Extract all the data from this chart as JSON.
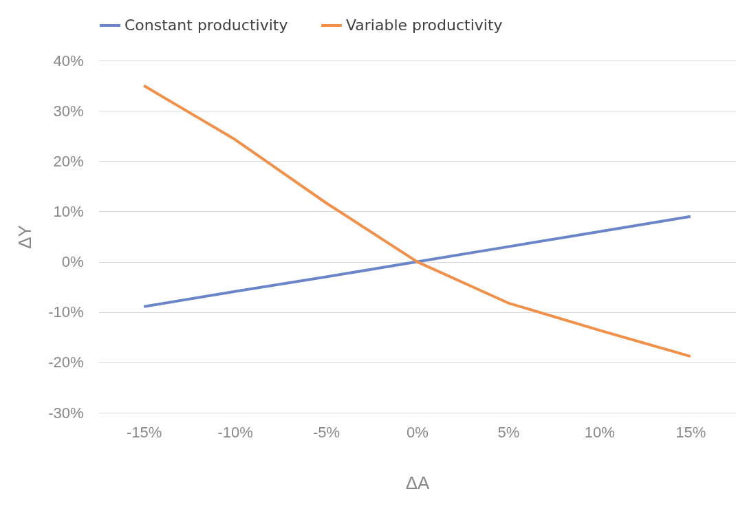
{
  "chart_data": {
    "type": "line",
    "xlabel": "ΔA",
    "ylabel": "ΔY",
    "categories": [
      "-15%",
      "-10%",
      "-5%",
      "0%",
      "5%",
      "10%",
      "15%"
    ],
    "series": [
      {
        "name": "Constant productivity",
        "color": "#6b86c8",
        "values": [
          -8.9,
          -5.9,
          -3,
          0,
          3,
          6,
          9
        ]
      },
      {
        "name": "Variable productivity",
        "color": "#f0904a",
        "values": [
          35,
          24.3,
          11.7,
          0,
          -8.2,
          -13.6,
          -18.8
        ]
      }
    ],
    "ylim": [
      -30,
      40
    ],
    "yticks": [
      {
        "value": -30,
        "label": "-30%"
      },
      {
        "value": -20,
        "label": "-20%"
      },
      {
        "value": -10,
        "label": "-10%"
      },
      {
        "value": 0,
        "label": "0%"
      },
      {
        "value": 10,
        "label": "10%"
      },
      {
        "value": 20,
        "label": "20%"
      },
      {
        "value": 30,
        "label": "30%"
      },
      {
        "value": 40,
        "label": "40%"
      }
    ],
    "grid": "y",
    "legend": "top",
    "marker": "none",
    "line_style": "solid"
  }
}
